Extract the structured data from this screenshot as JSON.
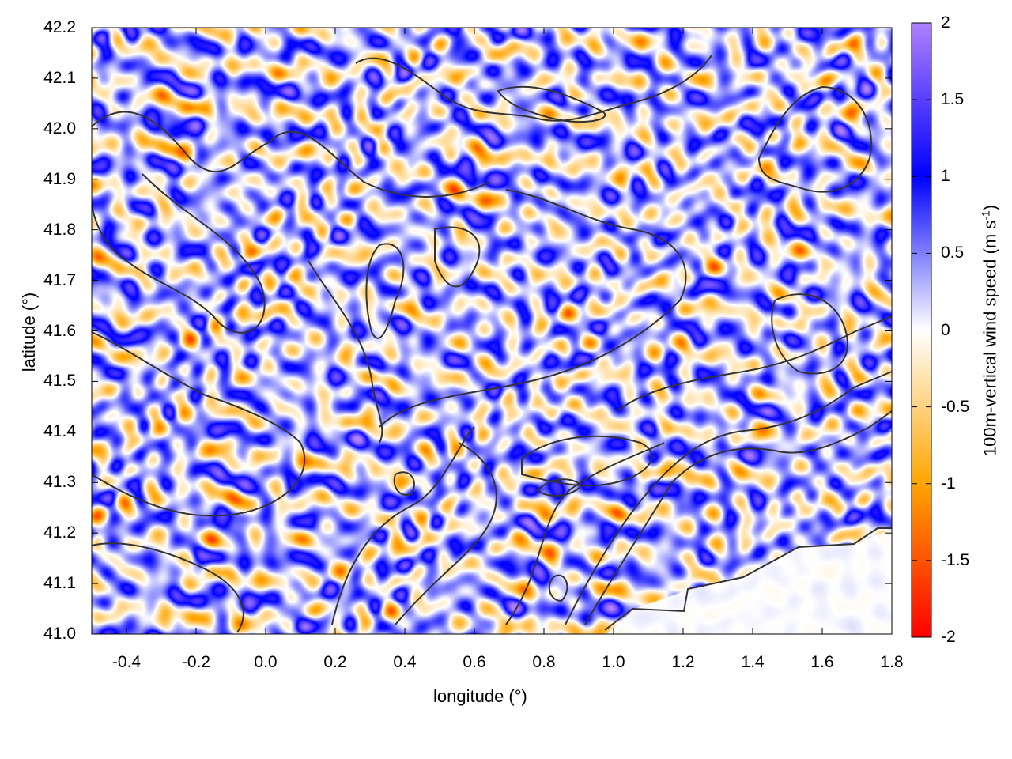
{
  "chart_data": {
    "type": "heatmap",
    "title": "",
    "xlabel": "longitude (°)",
    "ylabel": "latitude (°)",
    "xlim": [
      -0.5,
      1.8
    ],
    "ylim": [
      41.0,
      42.2
    ],
    "xticks": [
      "-0.4",
      "-0.2",
      "0.0",
      "0.2",
      "0.4",
      "0.6",
      "0.8",
      "1.0",
      "1.2",
      "1.4",
      "1.6",
      "1.8"
    ],
    "yticks": [
      "41.0",
      "41.1",
      "41.2",
      "41.3",
      "41.4",
      "41.5",
      "41.6",
      "41.7",
      "41.8",
      "41.9",
      "42.0",
      "42.1",
      "42.2"
    ],
    "colorbar": {
      "label_main": "100m-vertical wind speed (m s",
      "label_sup": "-1",
      "label_end": ")",
      "range": [
        -2,
        2
      ],
      "ticks": [
        "2",
        "1.5",
        "1",
        "0.5",
        "0",
        "-0.5",
        "-1",
        "-1.5",
        "-2"
      ],
      "colormap": [
        {
          "value": -2,
          "color": "#ff0000"
        },
        {
          "value": -1,
          "color": "#ffa500"
        },
        {
          "value": 0,
          "color": "#ffffff"
        },
        {
          "value": 1,
          "color": "#0000ff"
        },
        {
          "value": 2,
          "color": "#b080ff"
        }
      ]
    },
    "contour_color": "#333333",
    "grid": false
  }
}
